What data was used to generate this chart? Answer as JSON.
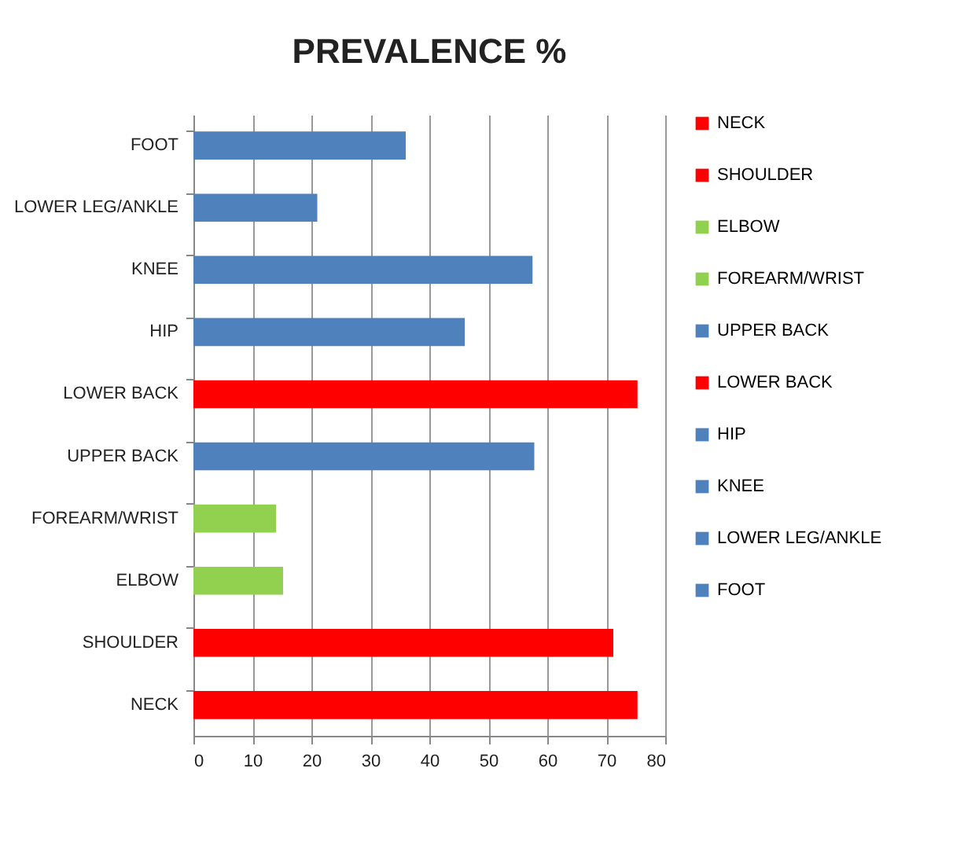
{
  "chart_data": {
    "type": "bar",
    "orientation": "horizontal",
    "title": "PREVALENCE %",
    "categories": [
      "FOOT",
      "LOWER LEG/ANKLE",
      "KNEE",
      "HIP",
      "LOWER BACK",
      "UPPER BACK",
      "FOREARM/WRIST",
      "ELBOW",
      "SHOULDER",
      "NECK"
    ],
    "series": [
      {
        "name": "NECK",
        "color": "#ff0000",
        "values": [
          null,
          null,
          null,
          null,
          null,
          null,
          null,
          null,
          null,
          75.3
        ]
      },
      {
        "name": "SHOULDER",
        "color": "#ff0000",
        "values": [
          null,
          null,
          null,
          null,
          null,
          null,
          null,
          null,
          71.2,
          null
        ]
      },
      {
        "name": "ELBOW",
        "color": "#92d050",
        "values": [
          null,
          null,
          null,
          null,
          null,
          null,
          null,
          15.2,
          null,
          null
        ]
      },
      {
        "name": "FOREARM/WRIST",
        "color": "#92d050",
        "values": [
          null,
          null,
          null,
          null,
          null,
          null,
          14,
          null,
          null,
          null
        ]
      },
      {
        "name": "UPPER BACK",
        "color": "#4f81bd",
        "values": [
          null,
          null,
          null,
          null,
          null,
          57.8,
          null,
          null,
          null,
          null
        ]
      },
      {
        "name": "LOWER BACK",
        "color": "#ff0000",
        "values": [
          null,
          null,
          null,
          null,
          75.3,
          null,
          null,
          null,
          null,
          null
        ]
      },
      {
        "name": "HIP",
        "color": "#4f81bd",
        "values": [
          null,
          null,
          null,
          46,
          null,
          null,
          null,
          null,
          null,
          null
        ]
      },
      {
        "name": "KNEE",
        "color": "#4f81bd",
        "values": [
          null,
          null,
          57.5,
          null,
          null,
          null,
          null,
          null,
          null,
          null
        ]
      },
      {
        "name": "LOWER LEG/ANKLE",
        "color": "#4f81bd",
        "values": [
          null,
          21,
          null,
          null,
          null,
          null,
          null,
          null,
          null,
          null
        ]
      },
      {
        "name": "FOOT",
        "color": "#4f81bd",
        "values": [
          36,
          null,
          null,
          null,
          null,
          null,
          null,
          null,
          null,
          null
        ]
      }
    ],
    "xlim": [
      0,
      80
    ],
    "xticks": [
      0,
      10,
      20,
      30,
      40,
      50,
      60,
      70,
      80
    ],
    "grid": "x",
    "legend": "right"
  }
}
